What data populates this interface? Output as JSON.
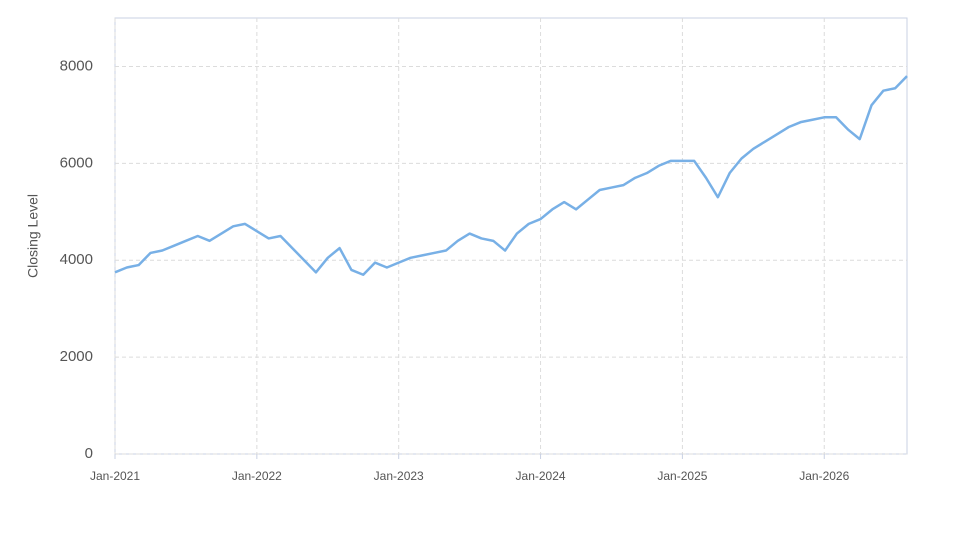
{
  "chart_data": {
    "type": "line",
    "y_label": "Closing Level",
    "x": [
      "2021-01",
      "2021-02",
      "2021-03",
      "2021-04",
      "2021-05",
      "2021-06",
      "2021-07",
      "2021-08",
      "2021-09",
      "2021-10",
      "2021-11",
      "2021-12",
      "2022-01",
      "2022-02",
      "2022-03",
      "2022-04",
      "2022-05",
      "2022-06",
      "2022-07",
      "2022-08",
      "2022-09",
      "2022-10",
      "2022-11",
      "2022-12",
      "2023-01",
      "2023-02",
      "2023-03",
      "2023-04",
      "2023-05",
      "2023-06",
      "2023-07",
      "2023-08",
      "2023-09",
      "2023-10",
      "2023-11",
      "2023-12",
      "2024-01",
      "2024-02",
      "2024-03",
      "2024-04",
      "2024-05",
      "2024-06",
      "2024-07",
      "2024-08",
      "2024-09",
      "2024-10",
      "2024-11",
      "2024-12",
      "2025-01",
      "2025-02",
      "2025-03",
      "2025-04",
      "2025-05",
      "2025-06",
      "2025-07",
      "2025-08",
      "2025-09",
      "2025-10",
      "2025-11",
      "2025-12",
      "2026-01",
      "2026-02",
      "2026-03",
      "2026-04",
      "2026-05",
      "2026-06",
      "2026-07",
      "2026-08"
    ],
    "series": [
      {
        "name": "Closing Level",
        "color": "#78b0e6",
        "values": [
          3750,
          3850,
          3900,
          4150,
          4200,
          4300,
          4400,
          4500,
          4400,
          4550,
          4700,
          4750,
          4600,
          4450,
          4500,
          4250,
          4000,
          3750,
          4050,
          4250,
          3800,
          3700,
          3950,
          3850,
          3950,
          4050,
          4100,
          4150,
          4200,
          4400,
          4550,
          4450,
          4400,
          4200,
          4550,
          4750,
          4850,
          5050,
          5200,
          5050,
          5250,
          5450,
          5500,
          5550,
          5700,
          5800,
          5950,
          6050,
          6050,
          6050,
          5700,
          5300,
          5800,
          6100,
          6300,
          6450,
          6600,
          6750,
          6850,
          6900,
          6950,
          6950,
          6700,
          6500,
          7200,
          7500,
          7550,
          7800
        ]
      }
    ],
    "xlim": [
      "2021-01",
      "2026-08"
    ],
    "xticks": [
      {
        "value": "2021-01",
        "label": "Jan-2021"
      },
      {
        "value": "2022-01",
        "label": "Jan-2022"
      },
      {
        "value": "2023-01",
        "label": "Jan-2023"
      },
      {
        "value": "2024-01",
        "label": "Jan-2024"
      },
      {
        "value": "2025-01",
        "label": "Jan-2025"
      },
      {
        "value": "2026-01",
        "label": "Jan-2026"
      }
    ],
    "ylim": [
      0,
      9000
    ],
    "yticks": [
      0,
      2000,
      4000,
      6000,
      8000
    ],
    "grid": true
  }
}
